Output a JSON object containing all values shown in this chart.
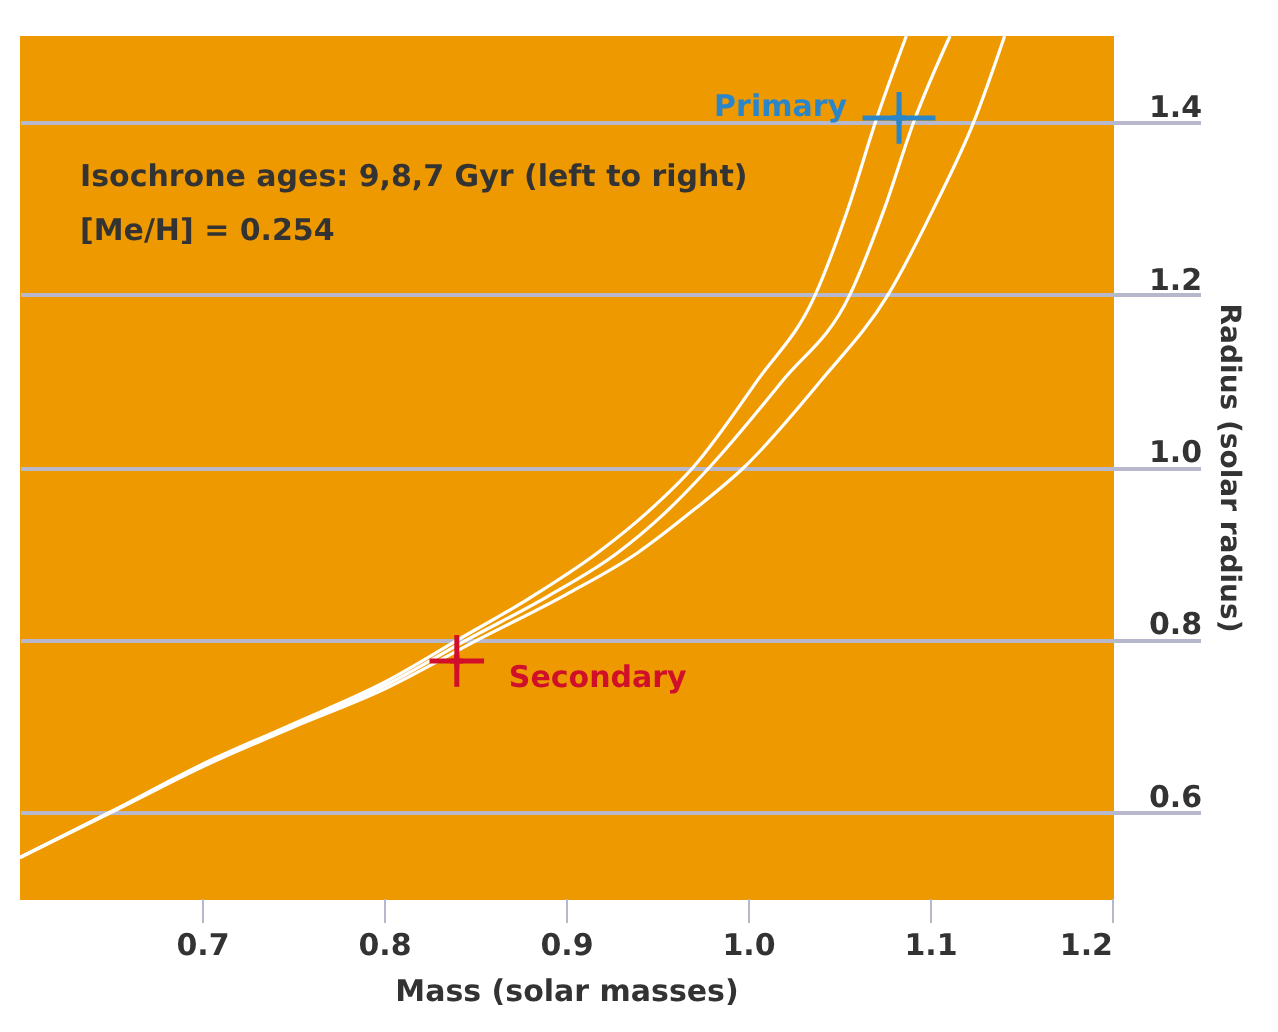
{
  "chart_data": {
    "type": "line",
    "xlabel": "Mass (solar masses)",
    "ylabel": "Radius (solar radius)",
    "xlim": [
      0.6,
      1.2
    ],
    "xticks": [
      0.7,
      0.8,
      0.9,
      {
        "value": 1,
        "label": "1.0"
      },
      1.1,
      1.2
    ],
    "ylim": [
      0.5,
      1.5
    ],
    "yticks": [
      0.6,
      0.8,
      {
        "value": 1,
        "label": "1.0"
      },
      1.2,
      1.4
    ],
    "grid": "y",
    "marker": "none",
    "annotations": [
      "Isochrone ages: 9,8,7 Gyr (left to right)",
      "[Me/H] = 0.254"
    ],
    "series": [
      {
        "color": "#ffffff",
        "x": [
          0.6,
          0.65,
          0.7,
          0.75,
          0.8,
          0.841,
          0.88,
          0.917,
          0.945,
          0.97,
          1.005,
          1.037,
          1.055,
          1.07,
          1.087
        ],
        "values": [
          0.547,
          0.6,
          0.655,
          0.702,
          0.75,
          0.8,
          0.848,
          0.9,
          0.948,
          1.0,
          1.1,
          1.2,
          1.3,
          1.4,
          1.5
        ]
      },
      {
        "color": "#ffffff",
        "x": [
          0.6,
          0.65,
          0.7,
          0.75,
          0.8,
          0.846,
          0.89,
          0.928,
          0.955,
          0.979,
          1.019,
          1.056,
          1.075,
          1.091,
          1.111
        ],
        "values": [
          0.547,
          0.6,
          0.654,
          0.7,
          0.746,
          0.8,
          0.85,
          0.9,
          0.948,
          1.0,
          1.1,
          1.2,
          1.3,
          1.4,
          1.5
        ]
      },
      {
        "color": "#ffffff",
        "x": [
          0.6,
          0.65,
          0.7,
          0.75,
          0.8,
          0.852,
          0.9,
          0.939,
          0.97,
          0.998,
          1.04,
          1.077,
          1.102,
          1.124,
          1.141
        ],
        "values": [
          0.547,
          0.599,
          0.652,
          0.698,
          0.742,
          0.8,
          0.852,
          0.9,
          0.95,
          1.0,
          1.1,
          1.2,
          1.3,
          1.4,
          1.5
        ]
      },
      {
        "type": "scatter",
        "name": "Primary",
        "color": "#2a86c8",
        "marker": "cross",
        "x": [
          1.083
        ],
        "values": [
          1.405
        ],
        "errors": [
          0.03
        ],
        "xerrors": [
          0.02
        ]
      },
      {
        "type": "scatter",
        "name": "Secondary",
        "color": "#d0102a",
        "marker": "cross",
        "x": [
          0.84
        ],
        "values": [
          0.775
        ],
        "errors": [
          0.03
        ],
        "xerrors": [
          0.015
        ]
      }
    ]
  }
}
